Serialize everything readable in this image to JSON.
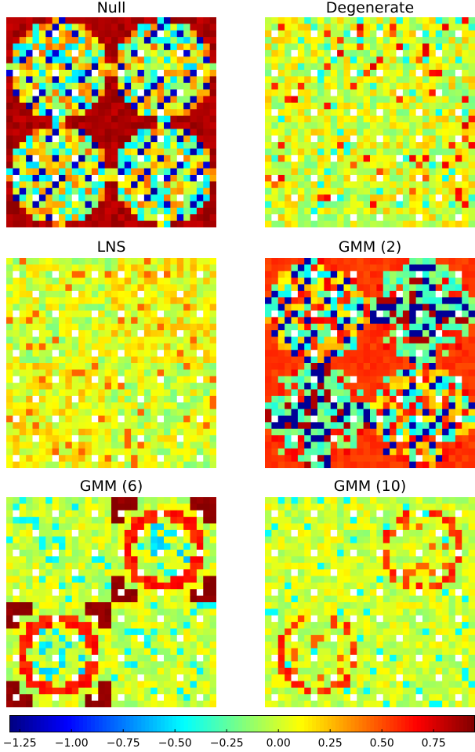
{
  "chart_data": [
    {
      "type": "heatmap",
      "title": "Null",
      "grid": false,
      "approx_cell_values": {
        "background_outer_frame": 0.8,
        "block_interior_mixed": [
          -1.25,
          -0.75,
          -0.5,
          0.0,
          0.25,
          0.5
        ],
        "missing_cells": "NaN (white)"
      },
      "pattern": "4 blocks; each block holds a ring-shaped lattice of values over a red (~0.8) background"
    },
    {
      "type": "heatmap",
      "title": "Degenerate",
      "grid": false,
      "approx_cell_values": {
        "typical": [
          -0.25,
          0.0,
          0.25
        ],
        "occasional": [
          0.5,
          0.75
        ],
        "missing_cells": "NaN (white)"
      },
      "pattern": "mostly uniform green/yellow noise with faint block structure"
    },
    {
      "type": "heatmap",
      "title": "LNS",
      "grid": false,
      "approx_cell_values": {
        "typical": [
          -0.25,
          0.0,
          0.25
        ],
        "occasional": [
          0.5
        ],
        "missing_cells": "NaN (white)"
      },
      "pattern": "uniform green/yellow noise, two blocks slightly warmer"
    },
    {
      "type": "heatmap",
      "title": "GMM (2)",
      "grid": false,
      "approx_cell_values": {
        "background": 0.5,
        "lattice": [
          -1.25,
          -0.5,
          0.0,
          0.75
        ],
        "missing_cells": "NaN (white)"
      },
      "pattern": "4 blocks with strong lattice / cross structure"
    },
    {
      "type": "heatmap",
      "title": "GMM (6)",
      "grid": false,
      "approx_cell_values": {
        "background": 0.0,
        "ring": 0.6,
        "corner_brackets": 0.9,
        "missing_cells": "NaN (white)"
      },
      "pattern": "green background; two blocks show orange ring with red corner brackets"
    },
    {
      "type": "heatmap",
      "title": "GMM (10)",
      "grid": false,
      "approx_cell_values": {
        "background": 0.0,
        "ring": 0.5,
        "missing_cells": "NaN (white)"
      },
      "pattern": "green background; faint orange rings in two blocks"
    }
  ],
  "colorbar": {
    "colormap": "jet",
    "range": [
      -1.3,
      0.95
    ],
    "ticks": [
      "−1.25",
      "−1.00",
      "−0.75",
      "−0.50",
      "−0.25",
      "0.00",
      "0.25",
      "0.50",
      "0.75"
    ],
    "tick_values": [
      -1.25,
      -1.0,
      -0.75,
      -0.5,
      -0.25,
      0.0,
      0.25,
      0.5,
      0.75
    ]
  },
  "panels": [
    {
      "title": "Null"
    },
    {
      "title": "Degenerate"
    },
    {
      "title": "LNS"
    },
    {
      "title": "GMM (2)"
    },
    {
      "title": "GMM (6)"
    },
    {
      "title": "GMM (10)"
    }
  ]
}
